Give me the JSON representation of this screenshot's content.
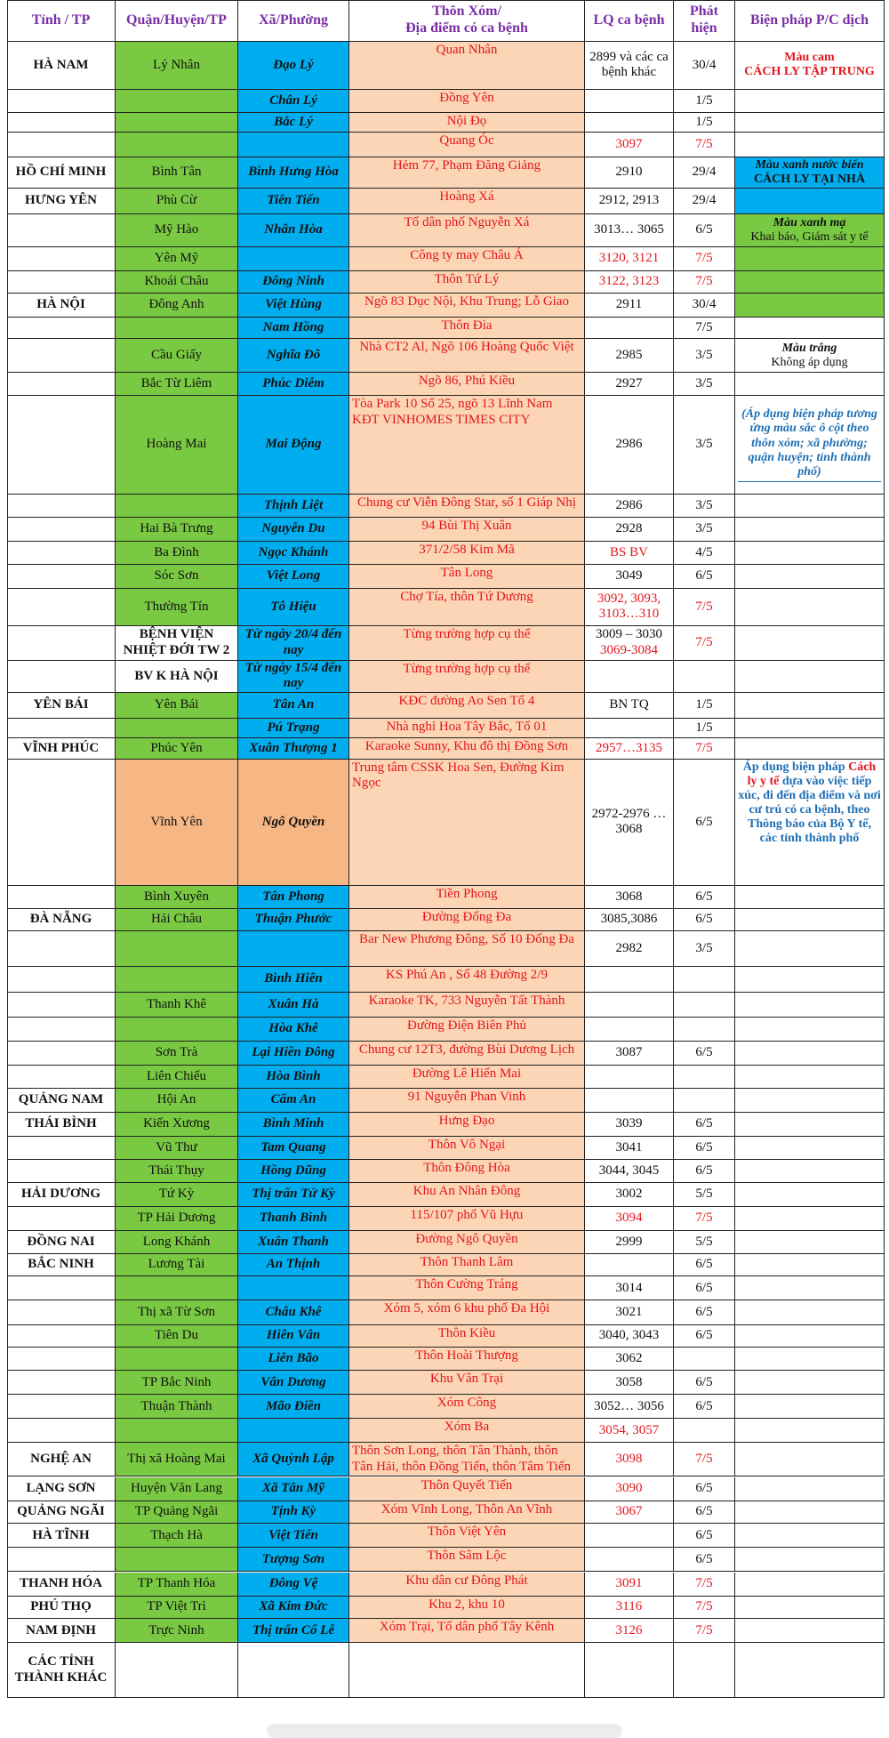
{
  "header": [
    "Tỉnh / TP",
    "Quận/Huyện/TP",
    "Xã/Phường",
    [
      "Thôn Xóm/",
      "Địa điểm có ca bệnh"
    ],
    "LQ ca bệnh",
    "Phát hiện",
    "Biện pháp P/C dịch"
  ],
  "rows": [
    [
      "HÀ NAM",
      "Lý Nhân",
      "Đạo Lý",
      "Quan Nhân",
      "2899 và các ca bệnh khác",
      "30/4"
    ],
    [
      null,
      null,
      "Chân Lý",
      "Đồng Yên",
      null,
      "1/5"
    ],
    [
      null,
      null,
      "Bắc Lý",
      "Nội Đọ",
      null,
      "1/5"
    ],
    [
      null,
      null,
      null,
      "Quang Óc",
      "3097",
      "7/5"
    ],
    [
      "HỒ CHÍ MINH",
      "Bình Tân",
      "Bình Hưng Hòa",
      "Hẻm 77, Phạm Đăng Giảng",
      "2910",
      "29/4"
    ],
    [
      "HƯNG YÊN",
      "Phù Cừ",
      "Tiên Tiến",
      "Hoàng Xá",
      "2912, 2913",
      "29/4"
    ],
    [
      null,
      "Mỹ Hào",
      "Nhân Hòa",
      "Tổ dân phố Nguyễn Xá",
      "3013… 3065",
      "6/5"
    ],
    [
      null,
      "Yên Mỹ",
      null,
      "Công ty may Châu Á",
      "3120, 3121",
      "7/5"
    ],
    [
      null,
      "Khoái Châu",
      "Đông Ninh",
      "Thôn Tứ Lý",
      "3122, 3123",
      "7/5"
    ],
    [
      "HÀ NỘI",
      "Đông Anh",
      "Việt Hùng",
      "Ngõ 83 Dục Nội, Khu Trung; Lỗ Giao",
      "2911",
      "30/4"
    ],
    [
      null,
      null,
      "Nam Hồng",
      "Thôn Đìa",
      null,
      "7/5"
    ],
    [
      null,
      "Cầu Giấy",
      "Nghĩa Đô",
      "Nhà CT2 Al, Ngõ 106 Hoàng Quốc Việt",
      "2985",
      "3/5"
    ],
    [
      null,
      "Bắc Từ Liêm",
      "Phúc Diễm",
      "Ngõ 86, Phú Kiều",
      "2927",
      "3/5"
    ],
    [
      null,
      "Hoàng Mai",
      "Mai Động",
      "Tòa Park 10 Số 25, ngõ 13 Lĩnh Nam KĐT VINHOMES TIMES CITY",
      "2986",
      "3/5"
    ],
    [
      null,
      null,
      "Thịnh Liệt",
      "Chung cư Viễn Đông Star, số 1 Giáp Nhị",
      "2986",
      "3/5"
    ],
    [
      null,
      "Hai Bà Trưng",
      "Nguyễn Du",
      "94 Bùi Thị Xuân",
      "2928",
      "3/5"
    ],
    [
      null,
      "Ba Đình",
      "Ngọc Khánh",
      "371/2/58 Kim Mã",
      "BS BV",
      "4/5"
    ],
    [
      null,
      "Sóc Sơn",
      "Việt Long",
      "Tân Long",
      "3049",
      "6/5"
    ],
    [
      null,
      "Thường Tín",
      "Tô Hiệu",
      "Chợ Tía, thôn Tứ Dương",
      "3092, 3093, 3103…310",
      "7/5"
    ],
    [
      null,
      "BỆNH VIỆN NHIỆT ĐỚI TW 2",
      "Từ ngày 20/4 đến nay",
      "Từng trường hợp cụ thể",
      [
        "3009 – 3030",
        "3069-3084"
      ],
      "7/5"
    ],
    [
      null,
      "BV K HÀ NỘI",
      "Từ ngày 15/4 đến nay",
      "Từng trường hợp cụ thể",
      null,
      null
    ],
    [
      "YÊN BÁI",
      "Yên Bái",
      "Tân An",
      "KĐC đường Ao Sen Tổ 4",
      "BN TQ",
      "1/5"
    ],
    [
      null,
      null,
      "Pú Trạng",
      "Nhà nghỉ Hoa Tây Bắc, Tổ 01",
      null,
      "1/5"
    ],
    [
      "VĨNH PHÚC",
      "Phúc Yên",
      "Xuân Thượng 1",
      "Karaoke Sunny, Khu đô thị Đồng Sơn",
      "2957…3135",
      "7/5"
    ],
    [
      null,
      "Vĩnh Yên",
      "Ngô Quyền",
      "Trung tâm CSSK Hoa Sen, Đường Kim Ngọc",
      "2972-2976 … 3068",
      "6/5"
    ],
    [
      null,
      "Bình Xuyên",
      "Tân Phong",
      "Tiền Phong",
      "3068",
      "6/5"
    ],
    [
      "ĐÀ NẴNG",
      "Hải Châu",
      "Thuận Phước",
      "Đường Đống Đa",
      "3085,3086",
      "6/5"
    ],
    [
      null,
      null,
      null,
      "Bar New Phương Đông, Số 10 Đống Đa",
      "2982",
      "3/5"
    ],
    [
      null,
      null,
      "Bình Hiên",
      "KS Phú An , Số 48 Đường 2/9",
      null,
      null
    ],
    [
      null,
      "Thanh Khê",
      "Xuân Hà",
      "Karaoke TK, 733 Nguyễn Tất Thành",
      null,
      null
    ],
    [
      null,
      null,
      "Hòa Khê",
      "Đường Điện Biên Phủ",
      null,
      null
    ],
    [
      null,
      "Sơn Trà",
      "Lại Hiền Đông",
      "Chung cư 12T3, đường Bùi Dương Lịch",
      "3087",
      "6/5"
    ],
    [
      null,
      "Liên Chiểu",
      "Hòa Bình",
      "Đường Lê Hiến Mai",
      null,
      null
    ],
    [
      "QUẢNG NAM",
      "Hội An",
      "Cẩm An",
      "91 Nguyễn Phan Vinh",
      null,
      null
    ],
    [
      "THÁI BÌNH",
      "Kiến Xương",
      "Bình Minh",
      "Hưng Đạo",
      "3039",
      "6/5"
    ],
    [
      null,
      "Vũ Thư",
      "Tam Quang",
      "Thôn Vô Ngại",
      "3041",
      "6/5"
    ],
    [
      null,
      "Thái Thụy",
      "Hồng Dũng",
      "Thôn Đông Hòa",
      "3044, 3045",
      "6/5"
    ],
    [
      "HẢI DƯƠNG",
      "Tứ Kỳ",
      "Thị trấn Tứ Kỳ",
      "Khu An Nhân Đông",
      "3002",
      "5/5"
    ],
    [
      null,
      "TP Hải Dương",
      "Thanh Bình",
      "115/107 phố Vũ Hựu",
      "3094",
      "7/5"
    ],
    [
      "ĐỒNG NAI",
      "Long Khánh",
      "Xuân Thanh",
      "Đường Ngô Quyền",
      "2999",
      "5/5"
    ],
    [
      "BẮC NINH",
      "Lương Tài",
      "An Thịnh",
      "Thôn Thanh Lâm",
      null,
      "6/5"
    ],
    [
      null,
      null,
      null,
      "Thôn Cường Tráng",
      "3014",
      "6/5"
    ],
    [
      null,
      "Thị xã Từ Sơn",
      "Châu Khê",
      "Xóm 5, xóm 6 khu phố Đa Hội",
      "3021",
      "6/5"
    ],
    [
      null,
      "Tiên Du",
      "Hiên Vân",
      "Thôn Kiều",
      "3040, 3043",
      "6/5"
    ],
    [
      null,
      null,
      "Liên Bão",
      "Thôn Hoài Thượng",
      "3062",
      null
    ],
    [
      null,
      "TP Bắc Ninh",
      "Vân Dương",
      "Khu Vân Trại",
      "3058",
      "6/5"
    ],
    [
      null,
      "Thuận Thành",
      "Mão Điền",
      "Xóm Công",
      "3052… 3056",
      "6/5"
    ],
    [
      null,
      null,
      null,
      "Xóm Ba",
      "3054, 3057",
      null
    ],
    [
      "NGHỆ AN",
      "Thị xã Hoàng Mai",
      "Xã Quỳnh Lập",
      "Thôn Sơn Long, thôn Tân Thành, thôn Tân Hải, thôn Đồng Tiến, thôn Tâm Tiến",
      "3098",
      "7/5"
    ],
    [
      "LẠNG SƠN",
      "Huyện Văn Lang",
      "Xã Tân Mỹ",
      "Thôn Quyết Tiến",
      "3090",
      "6/5"
    ],
    [
      "QUẢNG NGÃI",
      "TP Quảng Ngãi",
      "Tịnh Kỳ",
      "Xóm Vĩnh Long, Thôn An Vĩnh",
      "3067",
      "6/5"
    ],
    [
      "HÀ TĨNH",
      "Thạch Hà",
      "Việt Tiến",
      "Thôn Việt Yên",
      null,
      "6/5"
    ],
    [
      null,
      null,
      "Tượng Sơn",
      "Thôn Sâm Lộc",
      null,
      "6/5"
    ],
    [
      "THANH HÓA",
      "TP Thanh Hóa",
      "Đông Vệ",
      "Khu dân cư Đông Phát",
      "3091",
      "7/5"
    ],
    [
      "PHÚ THỌ",
      "TP Việt Trì",
      "Xã Kim Đức",
      "Khu 2, khu 10",
      "3116",
      "7/5"
    ],
    [
      "NAM ĐỊNH",
      "Trực Ninh",
      "Thị trấn Cổ Lễ",
      "Xóm Trại, Tổ dân phố Tây Kênh",
      "3126",
      "7/5"
    ],
    [
      "CÁC TỈNH THÀNH KHÁC",
      null,
      null,
      null,
      null,
      null
    ]
  ],
  "measures": [
    {
      "title": "Màu cam",
      "label": "CÁCH LY TẬP TRUNG"
    },
    {
      "title": "Màu xanh nước biển",
      "label": "CÁCH LY TẠI NHÀ"
    },
    {
      "title": "Màu xanh mạ",
      "label": "Khai báo, Giám sát y tế"
    },
    {
      "title": "Màu trắng",
      "label": "Không áp dụng"
    }
  ],
  "notes": {
    "general": "(Áp dụng biện pháp tương ứng màu sắc ô cột theo thôn xóm; xã phường; quận huyện; tỉnh thành phố)",
    "medical": {
      "before": "Áp dụng biện pháp",
      "highlight": "Cách ly y tế",
      "after": "dựa vào việc tiếp xúc, đi đến địa điểm và nơi cư trú có ca bệnh, theo Thông báo của Bộ Y tế, các tỉnh thành phố"
    }
  }
}
